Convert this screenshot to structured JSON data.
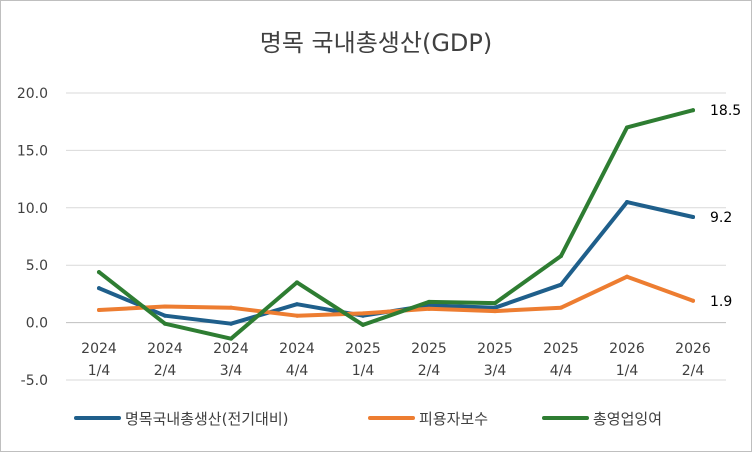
{
  "chart_data": {
    "type": "line",
    "title": "명목 국내총생산(GDP)",
    "categories": [
      [
        "2024",
        "1/4"
      ],
      [
        "2024",
        "2/4"
      ],
      [
        "2024",
        "3/4"
      ],
      [
        "2024",
        "4/4"
      ],
      [
        "2025",
        "1/4"
      ],
      [
        "2025",
        "2/4"
      ],
      [
        "2025",
        "3/4"
      ],
      [
        "2025",
        "4/4"
      ],
      [
        "2026",
        "1/4"
      ],
      [
        "2026",
        "2/4"
      ]
    ],
    "ylim": [
      -5.0,
      20.0
    ],
    "yticks": [
      "20.0",
      "15.0",
      "10.0",
      "5.0",
      "0.0",
      "-5.0"
    ],
    "ytick_values": [
      20,
      15,
      10,
      5,
      0,
      -5
    ],
    "grid": true,
    "legend_position": "bottom",
    "series": [
      {
        "name": "명목국내총생산(전기대비)",
        "color": "#1f5f8b",
        "values": [
          3.0,
          0.6,
          -0.1,
          1.6,
          0.6,
          1.5,
          1.3,
          3.3,
          10.5,
          9.2
        ],
        "end_label": "9.2"
      },
      {
        "name": "피용자보수",
        "color": "#ed7d31",
        "values": [
          1.1,
          1.4,
          1.3,
          0.6,
          0.8,
          1.2,
          1.0,
          1.3,
          4.0,
          1.9
        ],
        "end_label": "1.9"
      },
      {
        "name": "총영업잉여",
        "color": "#2e7d32",
        "values": [
          4.4,
          -0.1,
          -1.4,
          3.5,
          -0.2,
          1.8,
          1.7,
          5.8,
          17.0,
          18.5
        ],
        "end_label": "18.5"
      }
    ]
  }
}
